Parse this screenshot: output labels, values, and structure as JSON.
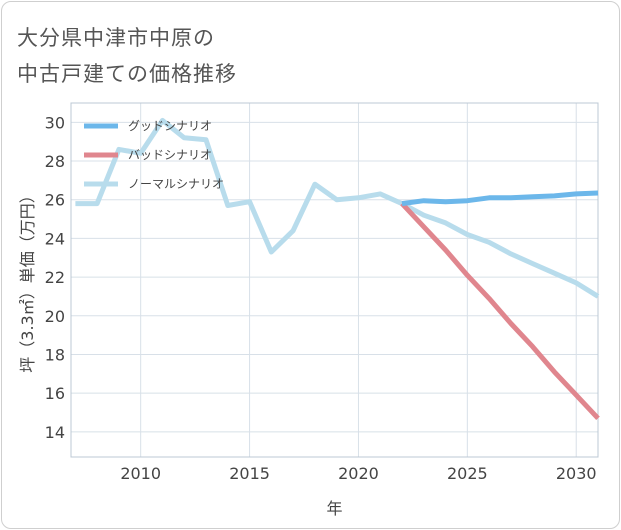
{
  "page": {
    "title_line1": "大分県中津市中原の",
    "title_line2": "中古戸建ての価格推移"
  },
  "chart_data": {
    "type": "line",
    "xlabel": "年",
    "ylabel": "坪（3.3㎡）単価（万円）",
    "xlim": [
      2006.8,
      2031
    ],
    "ylim": [
      12.7,
      31.0
    ],
    "xticks": [
      2010,
      2015,
      2020,
      2025,
      2030
    ],
    "yticks": [
      14,
      16,
      18,
      20,
      22,
      24,
      26,
      28,
      30
    ],
    "x_tick_labels": [
      "2010",
      "2015",
      "2020",
      "2025",
      "2030"
    ],
    "y_tick_labels": [
      "14",
      "16",
      "18",
      "20",
      "22",
      "24",
      "26",
      "28",
      "30"
    ],
    "legend_position": "top-left",
    "series": [
      {
        "name": "グッドシナリオ",
        "color": "#6cb7ea",
        "x": [
          2022,
          2023,
          2024,
          2025,
          2026,
          2027,
          2028,
          2029,
          2030,
          2031
        ],
        "y": [
          25.8,
          25.95,
          25.9,
          25.95,
          26.1,
          26.1,
          26.15,
          26.2,
          26.3,
          26.35
        ]
      },
      {
        "name": "バッドシナリオ",
        "color": "#e0868e",
        "x": [
          2022,
          2023,
          2024,
          2025,
          2026,
          2027,
          2028,
          2029,
          2030,
          2031
        ],
        "y": [
          25.8,
          24.6,
          23.4,
          22.1,
          20.9,
          19.6,
          18.4,
          17.1,
          15.9,
          14.7
        ]
      },
      {
        "name": "ノーマルシナリオ",
        "color": "#b8dcec",
        "x": [
          2007,
          2008,
          2009,
          2010,
          2011,
          2012,
          2013,
          2014,
          2015,
          2016,
          2017,
          2018,
          2019,
          2020,
          2021,
          2022,
          2023,
          2024,
          2025,
          2026,
          2027,
          2028,
          2029,
          2030,
          2031
        ],
        "y": [
          25.8,
          25.8,
          28.6,
          28.4,
          30.1,
          29.2,
          29.1,
          25.7,
          25.9,
          23.3,
          24.4,
          26.8,
          26.0,
          26.1,
          26.3,
          25.8,
          25.2,
          24.8,
          24.2,
          23.8,
          23.2,
          22.7,
          22.2,
          21.7,
          21.0
        ]
      }
    ]
  }
}
